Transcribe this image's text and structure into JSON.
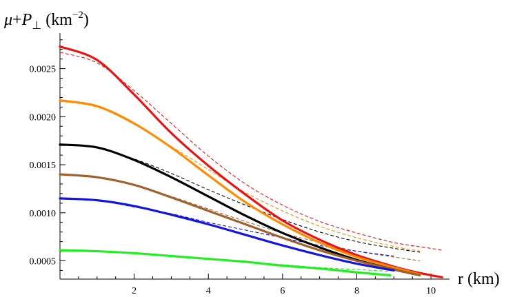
{
  "chart_data": {
    "type": "line",
    "ylabel": {
      "mu": "μ",
      "plus": "+",
      "P": "P",
      "perp": "⊥",
      "unit": " (km",
      "exp": "−2",
      "close": ")"
    },
    "xlabel": "r (km)",
    "xlim": [
      0,
      10.5
    ],
    "ylim": [
      0.00031,
      0.00287
    ],
    "xticks": [
      {
        "v": 2,
        "label": "2"
      },
      {
        "v": 4,
        "label": "4"
      },
      {
        "v": 6,
        "label": "6"
      },
      {
        "v": 8,
        "label": "8"
      },
      {
        "v": 10,
        "label": "10"
      }
    ],
    "yticks": [
      {
        "v": 0.0005,
        "label": "0.0005"
      },
      {
        "v": 0.001,
        "label": "0.0010"
      },
      {
        "v": 0.0015,
        "label": "0.0015"
      },
      {
        "v": 0.002,
        "label": "0.0020"
      },
      {
        "v": 0.0025,
        "label": "0.0025"
      }
    ],
    "series": [
      {
        "color": "#ee1111",
        "style": "solid",
        "x": [
          0,
          1,
          2,
          3,
          4,
          5,
          6,
          7,
          8,
          9,
          9.5,
          10,
          10.3
        ],
        "y": [
          0.00273,
          0.00259,
          0.00223,
          0.00183,
          0.00149,
          0.00119,
          0.00092,
          0.00072,
          0.00056,
          0.00044,
          0.00039,
          0.00035,
          0.00033
        ]
      },
      {
        "color": "#ee1111",
        "style": "dashed",
        "x": [
          0,
          1,
          2,
          3,
          4,
          5,
          6,
          7,
          8,
          9,
          10,
          10.3
        ],
        "y": [
          0.00267,
          0.00256,
          0.00227,
          0.00193,
          0.00159,
          0.0013,
          0.00108,
          0.00091,
          0.00079,
          0.00069,
          0.00063,
          0.00061
        ]
      },
      {
        "color": "#ff8c00",
        "style": "solid",
        "x": [
          0,
          1,
          2,
          3,
          4,
          5,
          6,
          7,
          8,
          9,
          9.7
        ],
        "y": [
          0.00217,
          0.00211,
          0.00193,
          0.00168,
          0.00139,
          0.00111,
          0.00088,
          0.00069,
          0.00054,
          0.00043,
          0.00036
        ]
      },
      {
        "color": "#ff8c00",
        "style": "dashed",
        "x": [
          0,
          1,
          2,
          3,
          4,
          5,
          6,
          7,
          8,
          9,
          9.7
        ],
        "y": [
          0.00216,
          0.0021,
          0.00192,
          0.00169,
          0.00145,
          0.00121,
          0.00102,
          0.00086,
          0.00074,
          0.00065,
          0.0006
        ]
      },
      {
        "color": "#000000",
        "style": "solid",
        "x": [
          0,
          1,
          2,
          3,
          4,
          5,
          6,
          7,
          8,
          9,
          9.7
        ],
        "y": [
          0.00171,
          0.00168,
          0.00155,
          0.00137,
          0.00117,
          0.00097,
          0.00079,
          0.00064,
          0.00051,
          0.00041,
          0.00035
        ]
      },
      {
        "color": "#000000",
        "style": "dashed",
        "x": [
          0,
          1,
          2,
          3,
          4,
          5,
          6,
          7,
          8,
          9,
          9.7
        ],
        "y": [
          0.00171,
          0.00168,
          0.00156,
          0.00141,
          0.00124,
          0.00108,
          0.00093,
          0.0008,
          0.0007,
          0.00063,
          0.00059
        ]
      },
      {
        "color": "#a0622d",
        "style": "solid",
        "x": [
          0,
          1,
          2,
          3,
          4,
          5,
          6,
          7,
          8,
          9,
          9.7
        ],
        "y": [
          0.0014,
          0.00137,
          0.00129,
          0.00116,
          0.00102,
          0.00088,
          0.00074,
          0.00061,
          0.0005,
          0.00041,
          0.00035
        ]
      },
      {
        "color": "#a0622d",
        "style": "dashed",
        "x": [
          0,
          1,
          2,
          3,
          4,
          5,
          6,
          7,
          8,
          9,
          9.7
        ],
        "y": [
          0.0014,
          0.00137,
          0.00129,
          0.00117,
          0.00104,
          0.00091,
          0.00079,
          0.00069,
          0.0006,
          0.00054,
          0.0005
        ]
      },
      {
        "color": "#1515e0",
        "style": "solid",
        "x": [
          0,
          1,
          2,
          3,
          4,
          5,
          6,
          7,
          8,
          9
        ],
        "y": [
          0.00115,
          0.00113,
          0.00107,
          0.00098,
          0.00088,
          0.00077,
          0.00066,
          0.00056,
          0.00047,
          0.0004
        ]
      },
      {
        "color": "#1515e0",
        "style": "dashed",
        "x": [
          0,
          1,
          2,
          3,
          4,
          5,
          6,
          7,
          8,
          9
        ],
        "y": [
          0.00115,
          0.00113,
          0.00106,
          0.00099,
          0.0009,
          0.00082,
          0.00074,
          0.00066,
          0.0006,
          0.00055
        ]
      },
      {
        "color": "#22ee22",
        "style": "solid",
        "x": [
          0,
          1,
          2,
          3,
          4,
          5,
          6,
          7,
          8,
          8.9
        ],
        "y": [
          0.00061,
          0.0006,
          0.00058,
          0.00055,
          0.00052,
          0.00049,
          0.00045,
          0.00042,
          0.00038,
          0.00035
        ]
      },
      {
        "color": "#22ee22",
        "style": "dashed",
        "x": [
          0,
          1,
          2,
          3,
          4,
          5,
          6,
          7,
          8,
          8.9
        ],
        "y": [
          0.00061,
          0.0006,
          0.00058,
          0.00055,
          0.00052,
          0.00049,
          0.00046,
          0.00043,
          0.00041,
          0.00039
        ]
      }
    ]
  }
}
